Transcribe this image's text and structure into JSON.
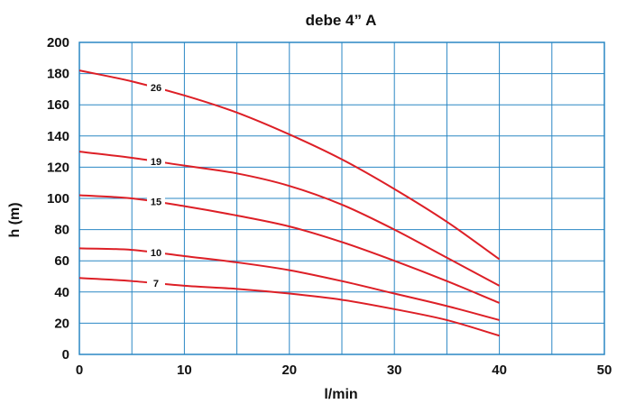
{
  "chart_data": {
    "type": "line",
    "title": "debe 4” A",
    "xlabel": "l/min",
    "ylabel": "h (m)",
    "xlim": [
      0,
      50
    ],
    "ylim": [
      0,
      200
    ],
    "x_ticks": [
      "0",
      "10",
      "20",
      "30",
      "40",
      "50"
    ],
    "y_ticks": [
      "0",
      "20",
      "40",
      "60",
      "80",
      "100",
      "120",
      "140",
      "160",
      "180",
      "200"
    ],
    "grid": true,
    "colors": {
      "grid": "#2a87c4",
      "frame": "#2a87c4",
      "curve": "#dd1f26"
    },
    "series": [
      {
        "name": "26",
        "label_x": 7.3,
        "x": [
          0,
          5,
          10,
          15,
          20,
          25,
          30,
          35,
          40
        ],
        "values": [
          182,
          175,
          166,
          155,
          141,
          125,
          106,
          85,
          61
        ]
      },
      {
        "name": "19",
        "label_x": 7.3,
        "x": [
          0,
          5,
          10,
          15,
          20,
          25,
          30,
          35,
          40
        ],
        "values": [
          130,
          126,
          121,
          116,
          108,
          96,
          80,
          62,
          44
        ]
      },
      {
        "name": "15",
        "label_x": 7.3,
        "x": [
          0,
          5,
          10,
          15,
          20,
          25,
          30,
          35,
          40
        ],
        "values": [
          102,
          100,
          95,
          89,
          82,
          72,
          60,
          47,
          33
        ]
      },
      {
        "name": "10",
        "label_x": 7.3,
        "x": [
          0,
          5,
          10,
          15,
          20,
          25,
          30,
          35,
          40
        ],
        "values": [
          68,
          67,
          63,
          59,
          54,
          47,
          39,
          31,
          22
        ]
      },
      {
        "name": "7",
        "label_x": 7.3,
        "x": [
          0,
          5,
          10,
          15,
          20,
          25,
          30,
          35,
          40
        ],
        "values": [
          49,
          47,
          44,
          42,
          39,
          35,
          29,
          22,
          12
        ]
      }
    ]
  }
}
